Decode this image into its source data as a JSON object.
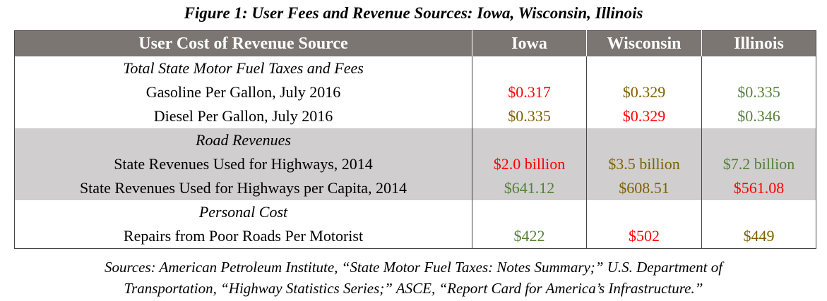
{
  "title": "Figure 1: User Fees and Revenue Sources: Iowa, Wisconsin, Illinois",
  "table": {
    "header": [
      "User Cost of Revenue Source",
      "Iowa",
      "Wisconsin",
      "Illinois"
    ],
    "sections": [
      {
        "label": "Total State Motor Fuel Taxes and Fees",
        "shaded": false,
        "rows": [
          {
            "label": "Gasoline Per Gallon, July 2016",
            "cells": [
              {
                "text": "$0.317",
                "color": "#ff0000"
              },
              {
                "text": "$0.329",
                "color": "#7f6000"
              },
              {
                "text": "$0.335",
                "color": "#538135"
              }
            ]
          },
          {
            "label": "Diesel Per Gallon, July 2016",
            "cells": [
              {
                "text": "$0.335",
                "color": "#7f6000"
              },
              {
                "text": "$0.329",
                "color": "#ff0000"
              },
              {
                "text": "$0.346",
                "color": "#538135"
              }
            ]
          }
        ]
      },
      {
        "label": "Road Revenues",
        "shaded": true,
        "rows": [
          {
            "label": "State Revenues Used for Highways, 2014",
            "cells": [
              {
                "text": "$2.0 billion",
                "color": "#ff0000"
              },
              {
                "text": "$3.5 billion",
                "color": "#7f6000"
              },
              {
                "text": "$7.2 billion",
                "color": "#538135"
              }
            ]
          },
          {
            "label": "State Revenues Used for Highways per Capita, 2014",
            "cells": [
              {
                "text": "$641.12",
                "color": "#538135"
              },
              {
                "text": "$608.51",
                "color": "#7f6000"
              },
              {
                "text": "$561.08",
                "color": "#ff0000"
              }
            ]
          }
        ]
      },
      {
        "label": "Personal Cost",
        "shaded": false,
        "rows": [
          {
            "label": "Repairs from Poor Roads Per Motorist",
            "cells": [
              {
                "text": "$422",
                "color": "#538135"
              },
              {
                "text": "$502",
                "color": "#ff0000"
              },
              {
                "text": "$449",
                "color": "#7f6000"
              }
            ]
          }
        ]
      }
    ]
  },
  "sources": [
    "Sources: American Petroleum Institute, “State Motor Fuel Taxes: Notes Summary;” U.S. Department of",
    "Transportation, “Highway Statistics Series;” ASCE, “Report Card for America’s Infrastructure.”"
  ]
}
